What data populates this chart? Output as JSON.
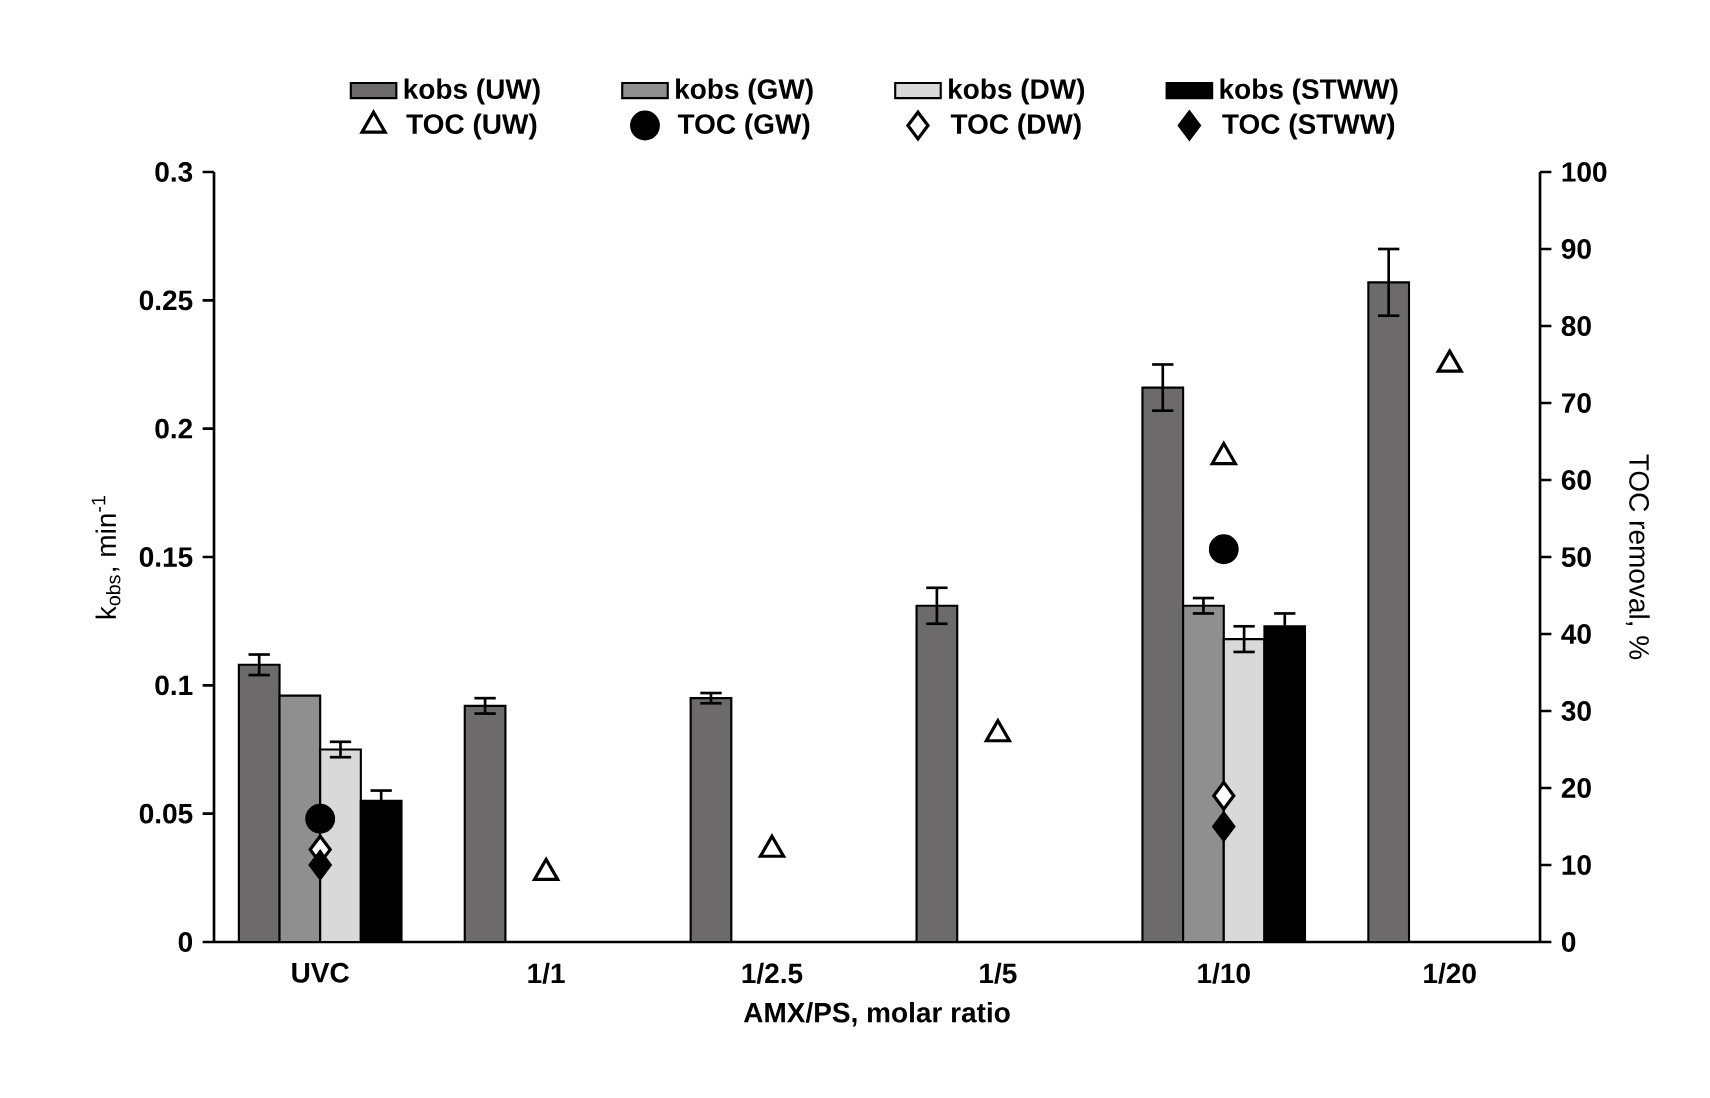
{
  "chart_data": {
    "type": "bar",
    "xlabel": "AMX/PS, molar ratio",
    "ylabel": "k$_{obs}$, min$^{-1}$",
    "y2label": "TOC removal, %",
    "categories": [
      "UVC",
      "1/1",
      "1/2.5",
      "1/5",
      "1/10",
      "1/20"
    ],
    "series": [
      {
        "name": "kobs (UW)",
        "color": "#6d6a6b",
        "values": [
          0.108,
          0.092,
          0.095,
          0.131,
          0.216,
          0.257
        ],
        "errors": [
          0.004,
          0.003,
          0.002,
          0.007,
          0.009,
          0.013
        ]
      },
      {
        "name": "kobs (GW)",
        "color": "#8f8f8f",
        "values": [
          0.096,
          null,
          null,
          null,
          0.131,
          null
        ],
        "errors": [
          null,
          null,
          null,
          null,
          0.003,
          null
        ]
      },
      {
        "name": "kobs (DW)",
        "color": "#d9d9d9",
        "values": [
          0.075,
          null,
          null,
          null,
          0.118,
          null
        ],
        "errors": [
          0.003,
          null,
          null,
          null,
          0.005,
          null
        ]
      },
      {
        "name": "kobs (STWW)",
        "color": "#000000",
        "values": [
          0.055,
          null,
          null,
          null,
          0.123,
          null
        ],
        "errors": [
          0.004,
          null,
          null,
          null,
          0.005,
          null
        ]
      },
      {
        "name": "TOC (UW)",
        "type": "scatter",
        "axis": "y2",
        "marker": "triangle",
        "color": "#ffffff",
        "values": [
          null,
          9,
          12,
          27,
          63,
          75
        ]
      },
      {
        "name": "TOC (GW)",
        "type": "scatter",
        "axis": "y2",
        "marker": "circle",
        "color": "#000000",
        "values": [
          16,
          null,
          null,
          null,
          51,
          null
        ]
      },
      {
        "name": "TOC (DW)",
        "type": "scatter",
        "axis": "y2",
        "marker": "diamond",
        "color": "#ffffff",
        "values": [
          12,
          null,
          null,
          null,
          19,
          null
        ]
      },
      {
        "name": "TOC (STWW)",
        "type": "scatter",
        "axis": "y2",
        "marker": "diamond",
        "color": "#000000",
        "values": [
          10,
          null,
          null,
          null,
          15,
          null
        ]
      }
    ],
    "ylim": [
      0,
      0.3
    ],
    "yticks": [
      0,
      0.05,
      0.1,
      0.15,
      0.2,
      0.25,
      0.3
    ],
    "y2lim": [
      0,
      100
    ],
    "y2ticks": [
      0,
      10,
      20,
      30,
      40,
      50,
      60,
      70,
      80,
      90,
      100
    ],
    "grid": false,
    "legend": "top"
  }
}
